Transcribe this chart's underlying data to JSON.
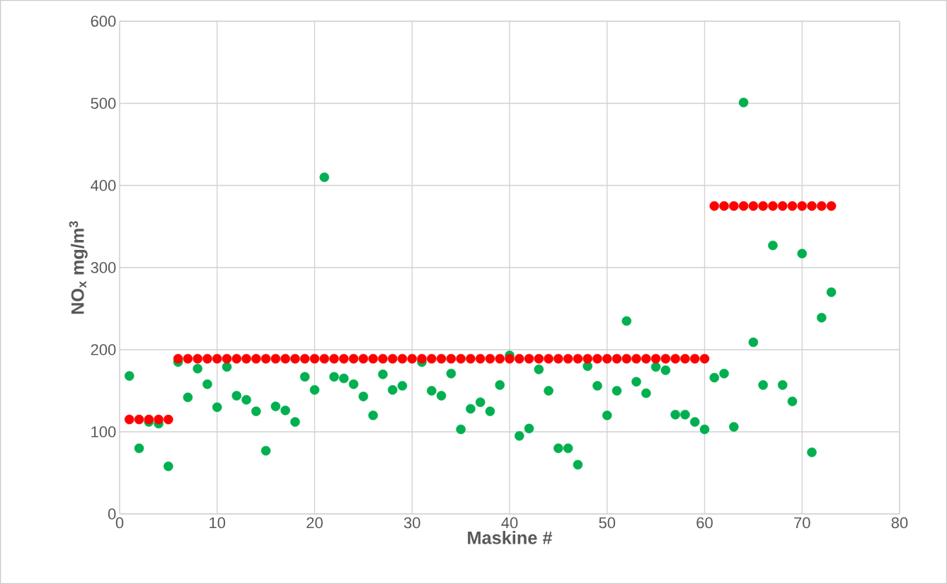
{
  "chart_data": {
    "type": "scatter",
    "xlabel": "Maskine #",
    "ylabel": "NO$_{x}$ mg/m$^{3}$",
    "xlim": [
      0,
      80
    ],
    "xticks": [
      0,
      10,
      20,
      30,
      40,
      50,
      60,
      70,
      80
    ],
    "ylim": [
      0,
      600
    ],
    "yticks": [
      0,
      100,
      200,
      300,
      400,
      500,
      600
    ],
    "grid": true,
    "marker": "circle",
    "series": [
      {
        "color": "#00b050",
        "x": [
          1,
          2,
          3,
          4,
          5,
          6,
          7,
          8,
          9,
          10,
          11,
          12,
          13,
          14,
          15,
          16,
          17,
          18,
          19,
          20,
          21,
          22,
          23,
          24,
          25,
          26,
          27,
          28,
          29,
          30,
          31,
          32,
          33,
          34,
          35,
          36,
          37,
          38,
          39,
          40,
          41,
          42,
          43,
          44,
          45,
          46,
          47,
          48,
          49,
          50,
          51,
          52,
          53,
          54,
          55,
          56,
          57,
          58,
          59,
          60,
          61,
          62,
          63,
          64,
          65,
          66,
          67,
          68,
          69,
          70,
          71,
          72,
          73
        ],
        "values": [
          168,
          80,
          112,
          110,
          58,
          185,
          142,
          177,
          158,
          130,
          179,
          144,
          139,
          125,
          77,
          131,
          126,
          112,
          167,
          151,
          410,
          167,
          165,
          158,
          143,
          120,
          170,
          151,
          156,
          null,
          185,
          150,
          144,
          171,
          103,
          128,
          136,
          125,
          157,
          193,
          95,
          104,
          176,
          150,
          80,
          80,
          60,
          180,
          156,
          120,
          150,
          235,
          161,
          147,
          179,
          175,
          121,
          121,
          112,
          103,
          166,
          171,
          106,
          501,
          209,
          157,
          327,
          157,
          137,
          317,
          75,
          239,
          270
        ]
      },
      {
        "color": "#ff0000",
        "x": [
          1,
          2,
          3,
          4,
          5,
          6,
          7,
          8,
          9,
          10,
          11,
          12,
          13,
          14,
          15,
          16,
          17,
          18,
          19,
          20,
          21,
          22,
          23,
          24,
          25,
          26,
          27,
          28,
          29,
          30,
          31,
          32,
          33,
          34,
          35,
          36,
          37,
          38,
          39,
          40,
          41,
          42,
          43,
          44,
          45,
          46,
          47,
          48,
          49,
          50,
          51,
          52,
          53,
          54,
          55,
          56,
          57,
          58,
          59,
          60,
          61,
          62,
          63,
          64,
          65,
          66,
          67,
          68,
          69,
          70,
          71,
          72,
          73
        ],
        "values": [
          115,
          115,
          115,
          115,
          115,
          189,
          189,
          189,
          189,
          189,
          189,
          189,
          189,
          189,
          189,
          189,
          189,
          189,
          189,
          189,
          189,
          189,
          189,
          189,
          189,
          189,
          189,
          189,
          189,
          189,
          189,
          189,
          189,
          189,
          189,
          189,
          189,
          189,
          189,
          189,
          189,
          189,
          189,
          189,
          189,
          189,
          189,
          189,
          189,
          189,
          189,
          189,
          189,
          189,
          189,
          189,
          189,
          189,
          189,
          189,
          375,
          375,
          375,
          375,
          375,
          375,
          375,
          375,
          375,
          375,
          375,
          375,
          375
        ]
      }
    ]
  }
}
